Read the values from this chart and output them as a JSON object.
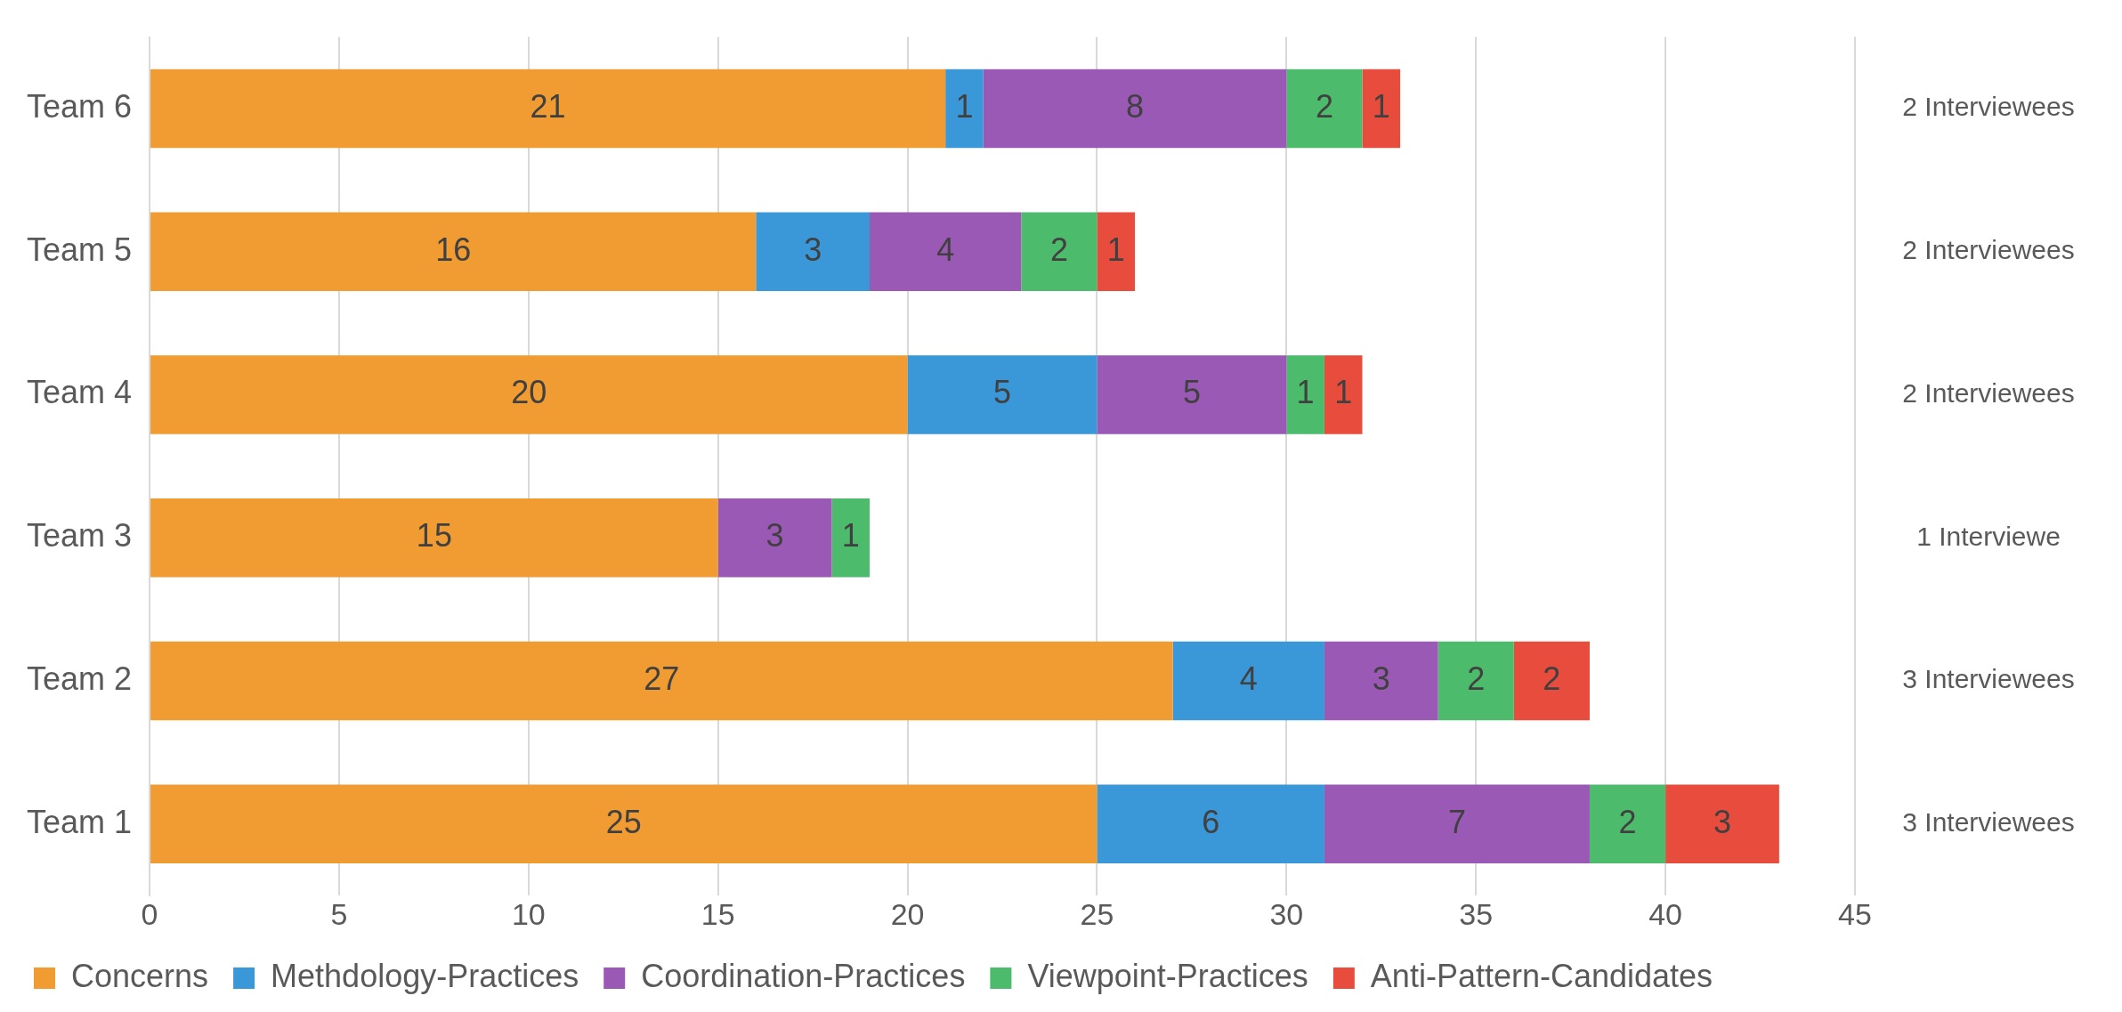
{
  "chart_data": {
    "type": "bar",
    "orientation": "horizontal",
    "stacked": true,
    "categories": [
      "Team 6",
      "Team 5",
      "Team 4",
      "Team 3",
      "Team 2",
      "Team 1"
    ],
    "series": [
      {
        "name": "Concerns",
        "color": "#f09c32",
        "values": [
          21,
          16,
          20,
          15,
          27,
          25
        ]
      },
      {
        "name": "Methdology-Practices",
        "color": "#3a98d9",
        "values": [
          1,
          3,
          5,
          null,
          4,
          6
        ]
      },
      {
        "name": "Coordination-Practices",
        "color": "#9a59b5",
        "values": [
          8,
          4,
          5,
          3,
          3,
          7
        ]
      },
      {
        "name": "Viewpoint-Practices",
        "color": "#4dbb6c",
        "values": [
          2,
          2,
          1,
          1,
          2,
          2
        ]
      },
      {
        "name": "Anti-Pattern-Candidates",
        "color": "#e84c3d",
        "values": [
          1,
          1,
          1,
          null,
          2,
          3
        ]
      }
    ],
    "xlim": [
      0,
      45
    ],
    "xticks": [
      0,
      5,
      10,
      15,
      20,
      25,
      30,
      35,
      40,
      45
    ],
    "grid": "x",
    "legend": "bottom",
    "data_labels": true,
    "annotations": [
      "2 Interviewees",
      "2 Interviewees",
      "2 Interviewees",
      "1 Interviewe",
      "3 Interviewees",
      "3 Interviewees"
    ]
  }
}
